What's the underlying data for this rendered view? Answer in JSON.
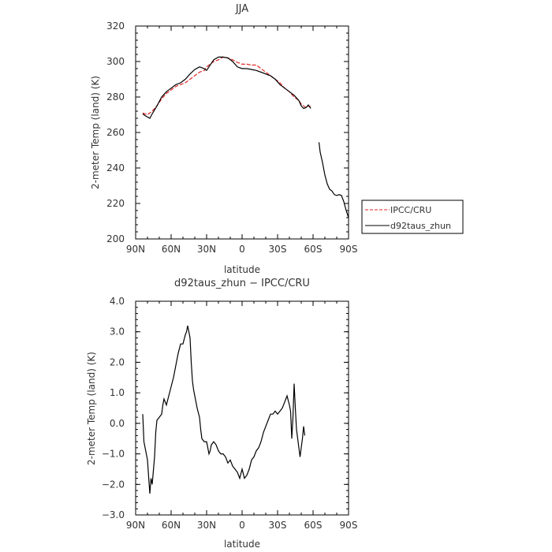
{
  "chart_data": [
    {
      "type": "line",
      "title": "JJA",
      "xlabel": "latitude",
      "ylabel": "2-meter Temp (land) (K)",
      "xlim": [
        90,
        -90
      ],
      "ylim": [
        200,
        320
      ],
      "x_ticks": [
        90,
        60,
        30,
        0,
        -30,
        -60,
        -90
      ],
      "x_tick_labels": [
        "90N",
        "60N",
        "30N",
        "0",
        "30S",
        "60S",
        "90S"
      ],
      "y_ticks": [
        200,
        220,
        240,
        260,
        280,
        300,
        320
      ],
      "y_tick_labels": [
        "200",
        "220",
        "240",
        "260",
        "280",
        "300",
        "320"
      ],
      "legend_position": "right",
      "series": [
        {
          "name": "IPCC/CRU",
          "color": "#e32626",
          "dash": true,
          "points": [
            [
              84,
              271
            ],
            [
              80,
              270
            ],
            [
              76,
              272
            ],
            [
              72,
              275
            ],
            [
              68,
              279
            ],
            [
              64,
              282
            ],
            [
              60,
              284
            ],
            [
              56,
              286
            ],
            [
              52,
              287
            ],
            [
              48,
              288
            ],
            [
              44,
              290
            ],
            [
              40,
              292
            ],
            [
              36,
              294
            ],
            [
              32,
              295
            ],
            [
              30,
              297
            ],
            [
              28,
              298
            ],
            [
              24,
              300
            ],
            [
              20,
              301
            ],
            [
              16,
              302.5
            ],
            [
              12,
              302
            ],
            [
              8,
              301
            ],
            [
              4,
              299.5
            ],
            [
              0,
              298.5
            ],
            [
              -4,
              298.5
            ],
            [
              -8,
              298
            ],
            [
              -12,
              298
            ],
            [
              -16,
              296
            ],
            [
              -20,
              294
            ],
            [
              -24,
              292
            ],
            [
              -28,
              290
            ],
            [
              -32,
              288
            ],
            [
              -36,
              285
            ],
            [
              -40,
              283
            ],
            [
              -44,
              280
            ],
            [
              -48,
              278
            ],
            [
              -50,
              276
            ],
            [
              -52,
              275
            ],
            [
              -54,
              274
            ],
            [
              -56,
              275
            ],
            [
              -58,
              274.5
            ]
          ]
        },
        {
          "name": "d92taus_zhun",
          "color": "#000000",
          "dash": false,
          "points": [
            [
              84,
              270.5
            ],
            [
              82,
              269.5
            ],
            [
              78,
              268
            ],
            [
              76,
              270.5
            ],
            [
              72,
              275
            ],
            [
              68,
              280
            ],
            [
              64,
              283
            ],
            [
              60,
              285
            ],
            [
              56,
              287
            ],
            [
              52,
              288
            ],
            [
              48,
              290
            ],
            [
              44,
              293
            ],
            [
              40,
              295.5
            ],
            [
              36,
              297
            ],
            [
              32,
              296
            ],
            [
              30,
              295
            ],
            [
              28,
              297
            ],
            [
              24,
              301
            ],
            [
              20,
              302.5
            ],
            [
              16,
              302.5
            ],
            [
              12,
              302
            ],
            [
              8,
              300
            ],
            [
              4,
              297
            ],
            [
              0,
              296
            ],
            [
              -4,
              296
            ],
            [
              -8,
              295.5
            ],
            [
              -12,
              295
            ],
            [
              -16,
              294
            ],
            [
              -20,
              293
            ],
            [
              -24,
              292
            ],
            [
              -28,
              290
            ],
            [
              -32,
              287
            ],
            [
              -36,
              285
            ],
            [
              -40,
              283
            ],
            [
              -44,
              281
            ],
            [
              -48,
              278
            ],
            [
              -50,
              275
            ],
            [
              -52,
              273.5
            ],
            [
              -54,
              274
            ],
            [
              -56,
              275.5
            ],
            [
              -58,
              273.5
            ],
            [
              null,
              null
            ],
            [
              -65,
              254.5
            ],
            [
              -66,
              249
            ],
            [
              -68,
              243
            ],
            [
              -70,
              236
            ],
            [
              -72,
              231
            ],
            [
              -74,
              228
            ],
            [
              -76,
              227
            ],
            [
              -78,
              225
            ],
            [
              -80,
              224.5
            ],
            [
              -82,
              225
            ],
            [
              -84,
              224.5
            ],
            [
              -86,
              221
            ],
            [
              -88,
              216
            ],
            [
              -90,
              212
            ]
          ]
        }
      ]
    },
    {
      "type": "line",
      "title": "d92taus_zhun − IPCC/CRU",
      "xlabel": "latitude",
      "ylabel": "2-meter Temp (land) (K)",
      "xlim": [
        90,
        -90
      ],
      "ylim": [
        -3,
        4
      ],
      "x_ticks": [
        90,
        60,
        30,
        0,
        -30,
        -60,
        -90
      ],
      "x_tick_labels": [
        "90N",
        "60N",
        "30N",
        "0",
        "30S",
        "60S",
        "90S"
      ],
      "y_ticks": [
        -3,
        -2,
        -1,
        0,
        1,
        2,
        3,
        4
      ],
      "y_tick_labels": [
        "−3.0",
        "−2.0",
        "−1.0",
        "0.0",
        "1.0",
        "2.0",
        "3.0",
        "4.0"
      ],
      "series": [
        {
          "color": "#000000",
          "points": [
            [
              84,
              0.3
            ],
            [
              83,
              -0.6
            ],
            [
              82,
              -0.8
            ],
            [
              80,
              -1.2
            ],
            [
              78,
              -2.3
            ],
            [
              77,
              -1.8
            ],
            [
              76,
              -2.0
            ],
            [
              74,
              -1.1
            ],
            [
              73,
              -0.3
            ],
            [
              72,
              0.1
            ],
            [
              70,
              0.2
            ],
            [
              68,
              0.3
            ],
            [
              67,
              0.6
            ],
            [
              66,
              0.8
            ],
            [
              64,
              0.6
            ],
            [
              62,
              0.9
            ],
            [
              60,
              1.2
            ],
            [
              58,
              1.5
            ],
            [
              56,
              1.9
            ],
            [
              54,
              2.3
            ],
            [
              52,
              2.6
            ],
            [
              50,
              2.6
            ],
            [
              48,
              2.9
            ],
            [
              47,
              3.0
            ],
            [
              46,
              3.2
            ],
            [
              45,
              3.0
            ],
            [
              44,
              2.8
            ],
            [
              43,
              2.0
            ],
            [
              42,
              1.4
            ],
            [
              41,
              1.1
            ],
            [
              40,
              0.9
            ],
            [
              38,
              0.5
            ],
            [
              36,
              0.2
            ],
            [
              35,
              -0.2
            ],
            [
              34,
              -0.5
            ],
            [
              32,
              -0.6
            ],
            [
              30,
              -0.6
            ],
            [
              29,
              -0.8
            ],
            [
              28,
              -1.0
            ],
            [
              27,
              -0.9
            ],
            [
              26,
              -0.7
            ],
            [
              24,
              -0.6
            ],
            [
              22,
              -0.7
            ],
            [
              20,
              -0.9
            ],
            [
              18,
              -1.0
            ],
            [
              16,
              -1.0
            ],
            [
              14,
              -1.1
            ],
            [
              12,
              -1.3
            ],
            [
              10,
              -1.2
            ],
            [
              8,
              -1.4
            ],
            [
              6,
              -1.5
            ],
            [
              4,
              -1.6
            ],
            [
              2,
              -1.8
            ],
            [
              0,
              -1.5
            ],
            [
              -2,
              -1.8
            ],
            [
              -4,
              -1.7
            ],
            [
              -6,
              -1.5
            ],
            [
              -8,
              -1.2
            ],
            [
              -10,
              -1.1
            ],
            [
              -12,
              -0.9
            ],
            [
              -14,
              -0.8
            ],
            [
              -16,
              -0.6
            ],
            [
              -18,
              -0.3
            ],
            [
              -20,
              -0.1
            ],
            [
              -22,
              0.1
            ],
            [
              -24,
              0.3
            ],
            [
              -26,
              0.3
            ],
            [
              -28,
              0.4
            ],
            [
              -30,
              0.3
            ],
            [
              -32,
              0.4
            ],
            [
              -34,
              0.5
            ],
            [
              -36,
              0.7
            ],
            [
              -38,
              0.9
            ],
            [
              -40,
              0.6
            ],
            [
              -41,
              0.4
            ],
            [
              -42,
              -0.5
            ],
            [
              -43,
              0.2
            ],
            [
              -44,
              1.3
            ],
            [
              -45,
              0.5
            ],
            [
              -46,
              -0.2
            ],
            [
              -47,
              -0.5
            ],
            [
              -48,
              -0.8
            ],
            [
              -49,
              -1.1
            ],
            [
              -50,
              -0.8
            ],
            [
              -51,
              -0.5
            ],
            [
              -52,
              -0.1
            ],
            [
              -53,
              -0.4
            ]
          ]
        }
      ]
    }
  ]
}
